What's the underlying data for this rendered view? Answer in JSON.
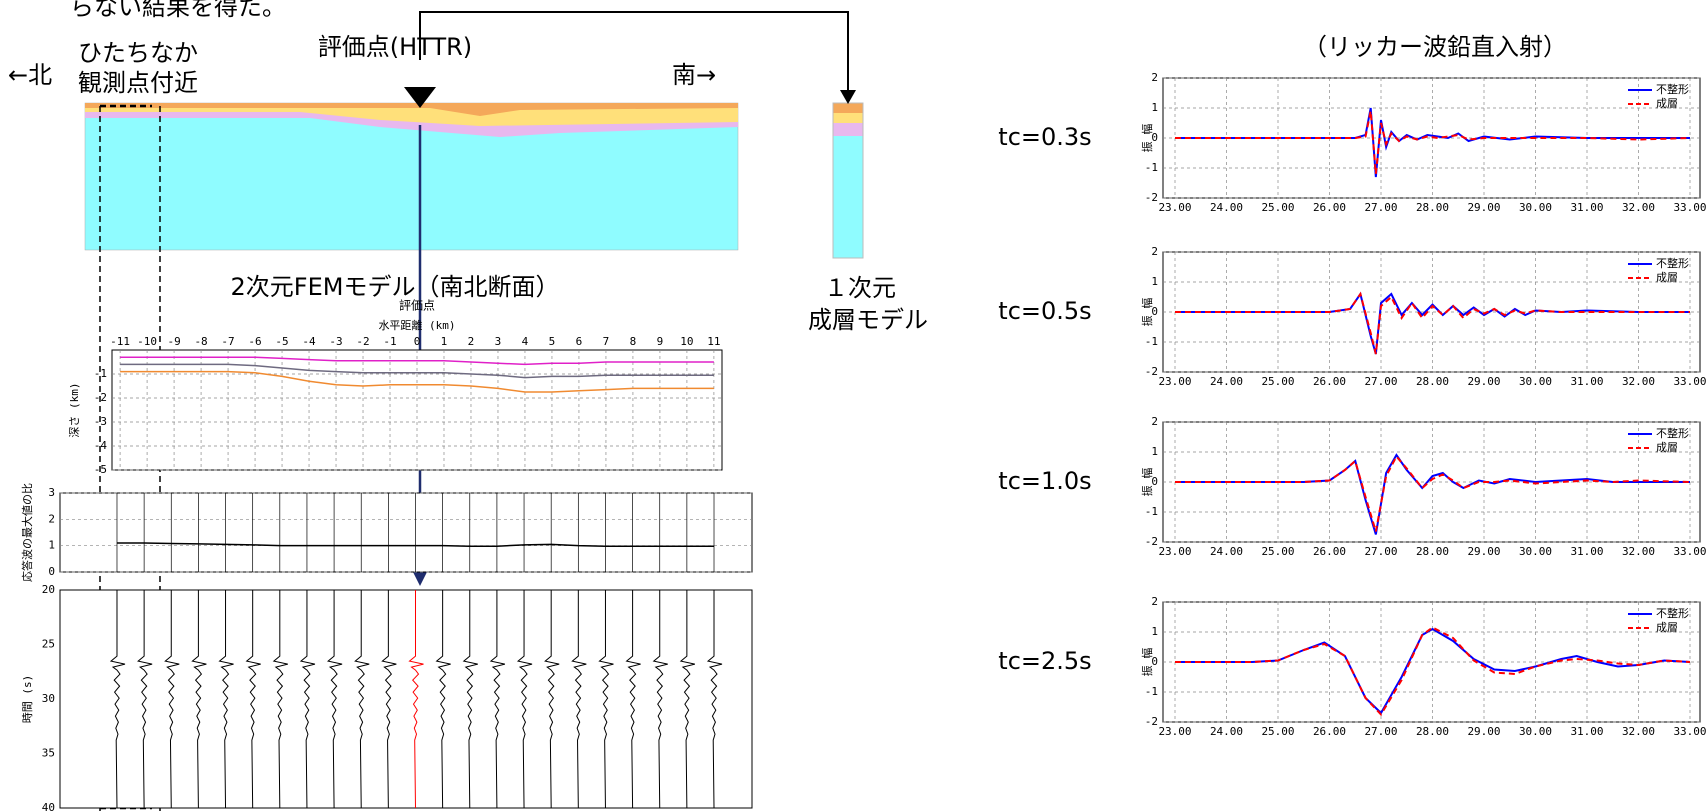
{
  "labels": {
    "top_fragment": "らない結果を得た。",
    "north": "←北",
    "site_1": "ひたちなか",
    "site_2": "観測点付近",
    "eval_point": "評価点(HTTR)",
    "south": "南→",
    "fem_caption": "2次元FEMモデル（南北断面）",
    "one_d_1": "１次元",
    "one_d_2": "成層モデル",
    "ricker_title": "（リッカー波鉛直入射）"
  },
  "chart_data": [
    {
      "type": "line",
      "annotation": "評価点",
      "xlabel": "水平距離 (km)",
      "ylabel": "深さ (km)",
      "xaxis_position": "top",
      "grid": true,
      "x": [
        -11,
        -10,
        -9,
        -8,
        -7,
        -6,
        -5,
        -4,
        -3,
        -2,
        -1,
        0,
        1,
        2,
        3,
        4,
        5,
        6,
        7,
        8,
        9,
        10,
        11
      ],
      "xlim": [
        -11.3,
        11.3
      ],
      "xticks": [
        -11,
        -10,
        -9,
        -8,
        -7,
        -6,
        -5,
        -4,
        -3,
        -2,
        -1,
        0,
        1,
        2,
        3,
        4,
        5,
        6,
        7,
        8,
        9,
        10,
        11
      ],
      "ylim": [
        -5,
        0
      ],
      "yticks": [
        -1,
        -2,
        -3,
        -4,
        -5
      ],
      "series": [
        {
          "color": "#e020c8",
          "values": [
            -0.3,
            -0.3,
            -0.3,
            -0.3,
            -0.3,
            -0.3,
            -0.35,
            -0.4,
            -0.45,
            -0.45,
            -0.45,
            -0.45,
            -0.45,
            -0.5,
            -0.55,
            -0.6,
            -0.55,
            -0.55,
            -0.5,
            -0.5,
            -0.5,
            -0.5,
            -0.5
          ]
        },
        {
          "color": "#6e6a80",
          "values": [
            -0.6,
            -0.6,
            -0.6,
            -0.6,
            -0.6,
            -0.65,
            -0.75,
            -0.85,
            -0.9,
            -0.95,
            -0.95,
            -0.95,
            -0.95,
            -1.0,
            -1.05,
            -1.15,
            -1.1,
            -1.1,
            -1.05,
            -1.05,
            -1.05,
            -1.05,
            -1.05
          ]
        },
        {
          "color": "#f08a30",
          "values": [
            -0.9,
            -0.9,
            -0.9,
            -0.9,
            -0.9,
            -0.95,
            -1.1,
            -1.3,
            -1.45,
            -1.5,
            -1.45,
            -1.45,
            -1.45,
            -1.5,
            -1.6,
            -1.75,
            -1.75,
            -1.7,
            -1.65,
            -1.6,
            -1.6,
            -1.6,
            -1.6
          ]
        }
      ]
    },
    {
      "type": "line",
      "ylabel": "応答波の最大値の比",
      "grid": true,
      "x": [
        -11,
        -10,
        -9,
        -8,
        -7,
        -6,
        -5,
        -4,
        -3,
        -2,
        -1,
        0,
        1,
        2,
        3,
        4,
        5,
        6,
        7,
        8,
        9,
        10,
        11
      ],
      "xlim": [
        -13.1,
        12.4
      ],
      "ylim": [
        0,
        3
      ],
      "yticks": [
        0,
        1,
        2,
        3
      ],
      "series": [
        {
          "color": "#000000",
          "values": [
            1.1,
            1.1,
            1.08,
            1.07,
            1.05,
            1.03,
            1.0,
            1.0,
            1.0,
            1.0,
            1.0,
            1.0,
            1.0,
            0.98,
            0.98,
            1.03,
            1.05,
            1.0,
            0.98,
            0.98,
            0.98,
            0.98,
            0.98
          ]
        }
      ]
    },
    {
      "type": "wiggle",
      "ylabel": "時間 (s)",
      "y_inverted": true,
      "x": [
        -11,
        -10,
        -9,
        -8,
        -7,
        -6,
        -5,
        -4,
        -3,
        -2,
        -1,
        0,
        1,
        2,
        3,
        4,
        5,
        6,
        7,
        8,
        9,
        10,
        11
      ],
      "xlim": [
        -13.1,
        12.4
      ],
      "ylim": [
        20,
        40
      ],
      "yticks": [
        20,
        25,
        30,
        35,
        40
      ],
      "series": [
        {
          "color": "#000000",
          "values": [
            26.8,
            26.8,
            26.8,
            26.8,
            26.8,
            26.8,
            26.8,
            26.8,
            26.8,
            26.8,
            26.8,
            null,
            26.8,
            26.8,
            26.8,
            26.8,
            26.8,
            26.8,
            26.8,
            26.8,
            26.8,
            26.8,
            26.8
          ]
        },
        {
          "color": "#ff0000",
          "values": [
            null,
            null,
            null,
            null,
            null,
            null,
            null,
            null,
            null,
            null,
            null,
            26.8,
            null,
            null,
            null,
            null,
            null,
            null,
            null,
            null,
            null,
            null,
            null
          ]
        }
      ]
    },
    {
      "type": "line",
      "label": "tc=0.3s",
      "ylabel": "振 幅",
      "grid": true,
      "legend": "upper right",
      "x": [
        23,
        26.5,
        26.7,
        26.8,
        26.9,
        27.0,
        27.1,
        27.2,
        27.35,
        27.5,
        27.7,
        27.9,
        28.1,
        28.3,
        28.5,
        28.7,
        29.0,
        29.5,
        30,
        31,
        32,
        33
      ],
      "xlim": [
        23,
        33
      ],
      "xticks": [
        {
          "value": 23,
          "label": "23.00"
        },
        {
          "value": 24,
          "label": "24.00"
        },
        {
          "value": 25,
          "label": "25.00"
        },
        {
          "value": 26,
          "label": "26.00"
        },
        {
          "value": 27,
          "label": "27.00"
        },
        {
          "value": 28,
          "label": "28.00"
        },
        {
          "value": 29,
          "label": "29.00"
        },
        {
          "value": 30,
          "label": "30.00"
        },
        {
          "value": 31,
          "label": "31.00"
        },
        {
          "value": 32,
          "label": "32.00"
        },
        {
          "value": 33,
          "label": "33.00"
        }
      ],
      "ylim": [
        -2,
        2
      ],
      "yticks": [
        2,
        1,
        0,
        -1,
        -2
      ],
      "series": [
        {
          "name": "不整形",
          "color": "#0000ff",
          "style": "solid",
          "values": [
            0,
            0,
            0.1,
            1.0,
            -1.3,
            0.6,
            -0.3,
            0.2,
            -0.1,
            0.1,
            -0.05,
            0.1,
            0.05,
            0,
            0.15,
            -0.1,
            0.05,
            -0.05,
            0.05,
            0,
            0,
            0
          ]
        },
        {
          "name": "成層",
          "color": "#ff0000",
          "style": "dashed",
          "values": [
            0,
            0,
            0.05,
            0.9,
            -1.2,
            0.5,
            -0.2,
            0.15,
            -0.1,
            0.05,
            -0.05,
            0.05,
            0,
            0.05,
            0.1,
            -0.05,
            0,
            0,
            0,
            0,
            -0.05,
            0
          ]
        }
      ]
    },
    {
      "type": "line",
      "label": "tc=0.5s",
      "ylabel": "振 幅",
      "grid": true,
      "legend": "upper right",
      "x": [
        23,
        26,
        26.4,
        26.6,
        26.8,
        26.9,
        27.0,
        27.2,
        27.4,
        27.6,
        27.8,
        28.0,
        28.2,
        28.4,
        28.6,
        28.8,
        29,
        29.2,
        29.4,
        29.6,
        29.8,
        30,
        30.5,
        31,
        32,
        33
      ],
      "xlim": [
        23,
        33
      ],
      "xticks": [
        {
          "value": 23,
          "label": "23.00"
        },
        {
          "value": 24,
          "label": "24.00"
        },
        {
          "value": 25,
          "label": "25.00"
        },
        {
          "value": 26,
          "label": "26.00"
        },
        {
          "value": 27,
          "label": "27.00"
        },
        {
          "value": 28,
          "label": "28.00"
        },
        {
          "value": 29,
          "label": "29.00"
        },
        {
          "value": 30,
          "label": "30.00"
        },
        {
          "value": 31,
          "label": "31.00"
        },
        {
          "value": 32,
          "label": "32.00"
        },
        {
          "value": 33,
          "label": "33.00"
        }
      ],
      "ylim": [
        -2,
        2
      ],
      "yticks": [
        2,
        1,
        0,
        -1,
        -2
      ],
      "series": [
        {
          "name": "不整形",
          "color": "#0000ff",
          "style": "solid",
          "values": [
            0,
            0,
            0.1,
            0.6,
            -0.8,
            -1.4,
            0.3,
            0.6,
            -0.1,
            0.3,
            -0.1,
            0.25,
            -0.1,
            0.2,
            -0.1,
            0.15,
            -0.1,
            0.1,
            -0.15,
            0.1,
            -0.1,
            0.05,
            0,
            0.05,
            0,
            0
          ]
        },
        {
          "name": "成層",
          "color": "#ff0000",
          "style": "dashed",
          "values": [
            0,
            0,
            0.1,
            0.6,
            -0.7,
            -1.4,
            0.2,
            0.5,
            -0.2,
            0.3,
            -0.2,
            0.2,
            -0.1,
            0.2,
            -0.2,
            0.1,
            -0.05,
            0.1,
            -0.1,
            0.05,
            -0.05,
            0.05,
            0,
            0,
            0,
            0
          ]
        }
      ]
    },
    {
      "type": "line",
      "label": "tc=1.0s",
      "ylabel": "振 幅",
      "grid": true,
      "legend": "upper right",
      "x": [
        23,
        25.5,
        26,
        26.3,
        26.5,
        26.7,
        26.9,
        27.1,
        27.3,
        27.5,
        27.8,
        28.0,
        28.2,
        28.4,
        28.6,
        28.9,
        29.2,
        29.5,
        30,
        30.5,
        31,
        31.5,
        32,
        33
      ],
      "xlim": [
        23,
        33
      ],
      "xticks": [
        {
          "value": 23,
          "label": "23.00"
        },
        {
          "value": 24,
          "label": "24.00"
        },
        {
          "value": 25,
          "label": "25.00"
        },
        {
          "value": 26,
          "label": "26.00"
        },
        {
          "value": 27,
          "label": "27.00"
        },
        {
          "value": 28,
          "label": "28.00"
        },
        {
          "value": 29,
          "label": "29.00"
        },
        {
          "value": 30,
          "label": "30.00"
        },
        {
          "value": 31,
          "label": "31.00"
        },
        {
          "value": 32,
          "label": "32.00"
        },
        {
          "value": 33,
          "label": "33.00"
        }
      ],
      "ylim": [
        -2,
        2
      ],
      "yticks": [
        2,
        1,
        0,
        -1,
        -2
      ],
      "series": [
        {
          "name": "不整形",
          "color": "#0000ff",
          "style": "solid",
          "values": [
            0,
            0,
            0.05,
            0.4,
            0.7,
            -0.6,
            -1.75,
            0.3,
            0.9,
            0.4,
            -0.2,
            0.2,
            0.3,
            0,
            -0.2,
            0.05,
            -0.05,
            0.1,
            0,
            0.05,
            0.1,
            0,
            0,
            0
          ]
        },
        {
          "name": "成層",
          "color": "#ff0000",
          "style": "dashed",
          "values": [
            0,
            0,
            0.05,
            0.4,
            0.7,
            -0.5,
            -1.65,
            0.2,
            0.85,
            0.45,
            -0.2,
            0.1,
            0.25,
            0.05,
            -0.2,
            0,
            0,
            0.05,
            -0.05,
            0,
            0.05,
            0,
            0.05,
            0
          ]
        }
      ]
    },
    {
      "type": "line",
      "label": "tc=2.5s",
      "ylabel": "振 幅",
      "grid": true,
      "legend": "upper right",
      "x": [
        23,
        24.5,
        25,
        25.5,
        25.9,
        26.3,
        26.7,
        27.0,
        27.4,
        27.8,
        28.0,
        28.4,
        28.8,
        29.2,
        29.6,
        30,
        30.5,
        30.8,
        31.2,
        31.6,
        32,
        32.5,
        33
      ],
      "xlim": [
        23,
        33
      ],
      "xticks": [
        {
          "value": 23,
          "label": "23.00"
        },
        {
          "value": 24,
          "label": "24.00"
        },
        {
          "value": 25,
          "label": "25.00"
        },
        {
          "value": 26,
          "label": "26.00"
        },
        {
          "value": 27,
          "label": "27.00"
        },
        {
          "value": 28,
          "label": "28.00"
        },
        {
          "value": 29,
          "label": "29.00"
        },
        {
          "value": 30,
          "label": "30.00"
        },
        {
          "value": 31,
          "label": "31.00"
        },
        {
          "value": 32,
          "label": "32.00"
        },
        {
          "value": 33,
          "label": "33.00"
        }
      ],
      "ylim": [
        -2,
        2
      ],
      "yticks": [
        2,
        1,
        0,
        -1,
        -2
      ],
      "series": [
        {
          "name": "不整形",
          "color": "#0000ff",
          "style": "solid",
          "values": [
            0,
            0,
            0.05,
            0.4,
            0.65,
            0.2,
            -1.2,
            -1.7,
            -0.5,
            0.9,
            1.1,
            0.7,
            0.1,
            -0.25,
            -0.3,
            -0.15,
            0.1,
            0.2,
            0,
            -0.15,
            -0.1,
            0.05,
            0
          ]
        },
        {
          "name": "成層",
          "color": "#ff0000",
          "style": "dashed",
          "values": [
            0,
            0,
            0.05,
            0.4,
            0.6,
            0.2,
            -1.2,
            -1.75,
            -0.6,
            0.9,
            1.15,
            0.8,
            0.05,
            -0.35,
            -0.4,
            -0.15,
            0.05,
            0.1,
            0.05,
            -0.05,
            -0.1,
            0.05,
            0
          ]
        }
      ]
    }
  ]
}
